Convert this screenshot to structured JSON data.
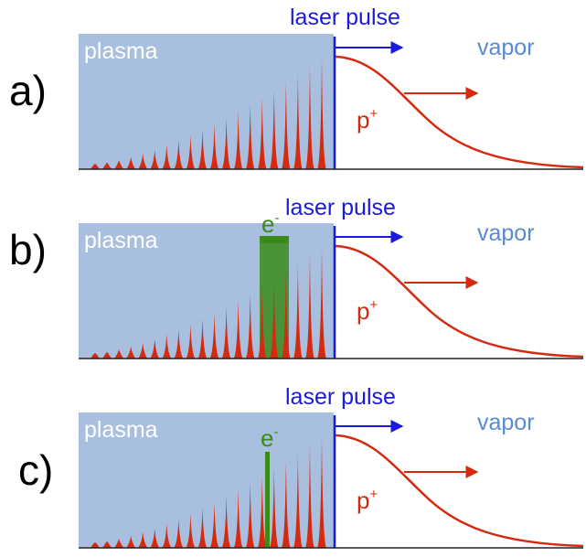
{
  "panels": [
    {
      "id": "a",
      "panel_label": "a)",
      "plasma_label": "plasma",
      "laser_label": "laser pulse",
      "vapor_label": "vapor",
      "proton_label": "p",
      "proton_sup": "+",
      "electron_label": "",
      "electron_sup": "",
      "electron_marker": "none"
    },
    {
      "id": "b",
      "panel_label": "b)",
      "plasma_label": "plasma",
      "laser_label": "laser pulse",
      "vapor_label": "vapor",
      "proton_label": "p",
      "proton_sup": "+",
      "electron_label": "e",
      "electron_sup": "-",
      "electron_marker": "wide-block"
    },
    {
      "id": "c",
      "panel_label": "c)",
      "plasma_label": "plasma",
      "laser_label": "laser pulse",
      "vapor_label": "vapor",
      "proton_label": "p",
      "proton_sup": "+",
      "electron_label": "e",
      "electron_sup": "-",
      "electron_marker": "thin-line"
    }
  ],
  "colors": {
    "plasma_fill": "#a9bfe0",
    "spike": "#d42a10",
    "laser": "#1a1adf",
    "vapor_text": "#5a8ad0",
    "electron": "#3a8a1a",
    "axis": "#222222"
  },
  "spike_count": 20
}
